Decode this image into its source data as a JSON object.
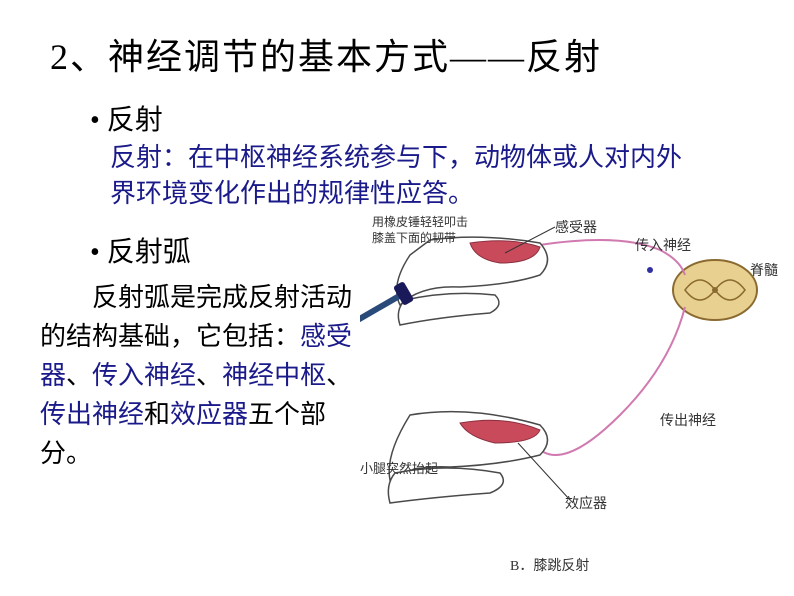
{
  "title": "2、神经调节的基本方式——反射",
  "bullet1": "• 反射",
  "definition": "反射：在中枢神经系统参与下，动物体或人对内外界环境变化作出的规律性应答。",
  "bullet2": "• 反射弧",
  "arc_desc": {
    "pre": "反射弧是完成反射活动的结构基础，它包括：",
    "kw1": "感受器",
    "sep": "、",
    "kw2": "传入神经",
    "kw3": "神经中枢",
    "kw4": "传出神经",
    "mid": "和",
    "kw5": "效应器",
    "post": "五个部分。"
  },
  "diagram": {
    "labels": {
      "hammer": "用橡皮锤轻轻叩击\n膝盖下面的韧带",
      "receptor": "感受器",
      "afferent": "传入神经",
      "spinal": "脊髓",
      "efferent": "传出神经",
      "legup": "小腿突然抬起",
      "effector": "效应器",
      "caption": "B．膝跳反射"
    },
    "colors": {
      "outline": "#4a4a4a",
      "muscle": "#c94a5a",
      "hammer_handle": "#2a4a7a",
      "hammer_head": "#1a1a5a",
      "spinal_fill": "#e8d090",
      "spinal_stroke": "#8a6a30",
      "nerve_afferent": "#d07ab0",
      "nerve_efferent": "#d07ab0",
      "dot": "#3030a0"
    }
  }
}
